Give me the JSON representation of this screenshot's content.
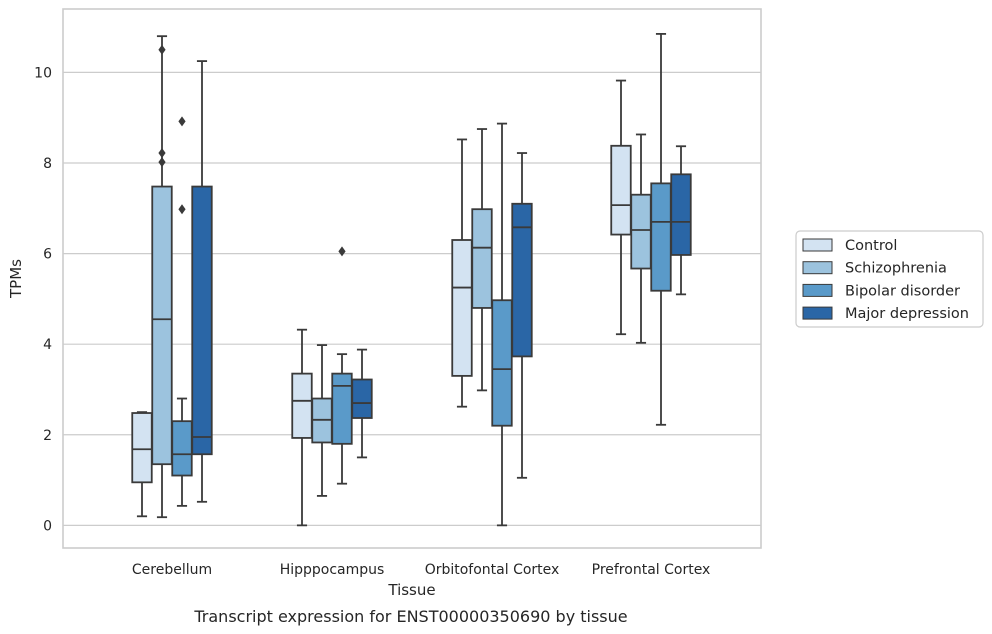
{
  "chart_data": {
    "type": "box",
    "title": "Transcript expression for ENST00000350690 by tissue",
    "xlabel": "Tissue",
    "ylabel": "TPMs",
    "ylim": [
      -0.5,
      11.4
    ],
    "yticks": [
      0,
      2,
      4,
      6,
      8,
      10
    ],
    "grid": true,
    "legend_position": "right",
    "categories": [
      "Cerebellum",
      "Hipppocampus",
      "Orbitofontal Cortex",
      "Prefrontal Cortex"
    ],
    "series": [
      {
        "name": "Control",
        "color": "#d3e3f2",
        "boxes": [
          {
            "whislo": 0.2,
            "q1": 0.95,
            "med": 1.68,
            "q3": 2.48,
            "whishi": 2.5,
            "fliers": []
          },
          {
            "whislo": 0.0,
            "q1": 1.93,
            "med": 2.75,
            "q3": 3.35,
            "whishi": 4.32,
            "fliers": []
          },
          {
            "whislo": 2.62,
            "q1": 3.3,
            "med": 5.25,
            "q3": 6.3,
            "whishi": 8.52,
            "fliers": []
          },
          {
            "whislo": 4.22,
            "q1": 6.42,
            "med": 7.07,
            "q3": 8.38,
            "whishi": 9.82,
            "fliers": []
          }
        ]
      },
      {
        "name": "Schizophrenia",
        "color": "#9cc3de",
        "boxes": [
          {
            "whislo": 0.18,
            "q1": 1.35,
            "med": 4.55,
            "q3": 7.48,
            "whishi": 10.8,
            "fliers": [
              8.02,
              8.22,
              10.5
            ]
          },
          {
            "whislo": 0.65,
            "q1": 1.83,
            "med": 2.33,
            "q3": 2.8,
            "whishi": 3.98,
            "fliers": []
          },
          {
            "whislo": 2.98,
            "q1": 4.8,
            "med": 6.13,
            "q3": 6.98,
            "whishi": 8.75,
            "fliers": []
          },
          {
            "whislo": 4.03,
            "q1": 5.67,
            "med": 6.52,
            "q3": 7.3,
            "whishi": 8.63,
            "fliers": []
          }
        ]
      },
      {
        "name": "Bipolar disorder",
        "color": "#5a9ac9",
        "boxes": [
          {
            "whislo": 0.43,
            "q1": 1.1,
            "med": 1.57,
            "q3": 2.3,
            "whishi": 2.8,
            "fliers": [
              6.98,
              8.92
            ]
          },
          {
            "whislo": 0.92,
            "q1": 1.8,
            "med": 3.08,
            "q3": 3.35,
            "whishi": 3.78,
            "fliers": [
              6.05
            ]
          },
          {
            "whislo": 0.0,
            "q1": 2.2,
            "med": 3.45,
            "q3": 4.97,
            "whishi": 8.87,
            "fliers": []
          },
          {
            "whislo": 2.22,
            "q1": 5.18,
            "med": 6.7,
            "q3": 7.55,
            "whishi": 10.85,
            "fliers": []
          }
        ]
      },
      {
        "name": "Major depression",
        "color": "#2a66a6",
        "boxes": [
          {
            "whislo": 0.52,
            "q1": 1.57,
            "med": 1.95,
            "q3": 7.48,
            "whishi": 10.25,
            "fliers": []
          },
          {
            "whislo": 1.5,
            "q1": 2.37,
            "med": 2.7,
            "q3": 3.22,
            "whishi": 3.88,
            "fliers": []
          },
          {
            "whislo": 1.05,
            "q1": 3.73,
            "med": 6.58,
            "q3": 7.1,
            "whishi": 8.22,
            "fliers": []
          },
          {
            "whislo": 5.1,
            "q1": 5.97,
            "med": 6.7,
            "q3": 7.75,
            "whishi": 8.37,
            "fliers": []
          }
        ]
      }
    ]
  }
}
